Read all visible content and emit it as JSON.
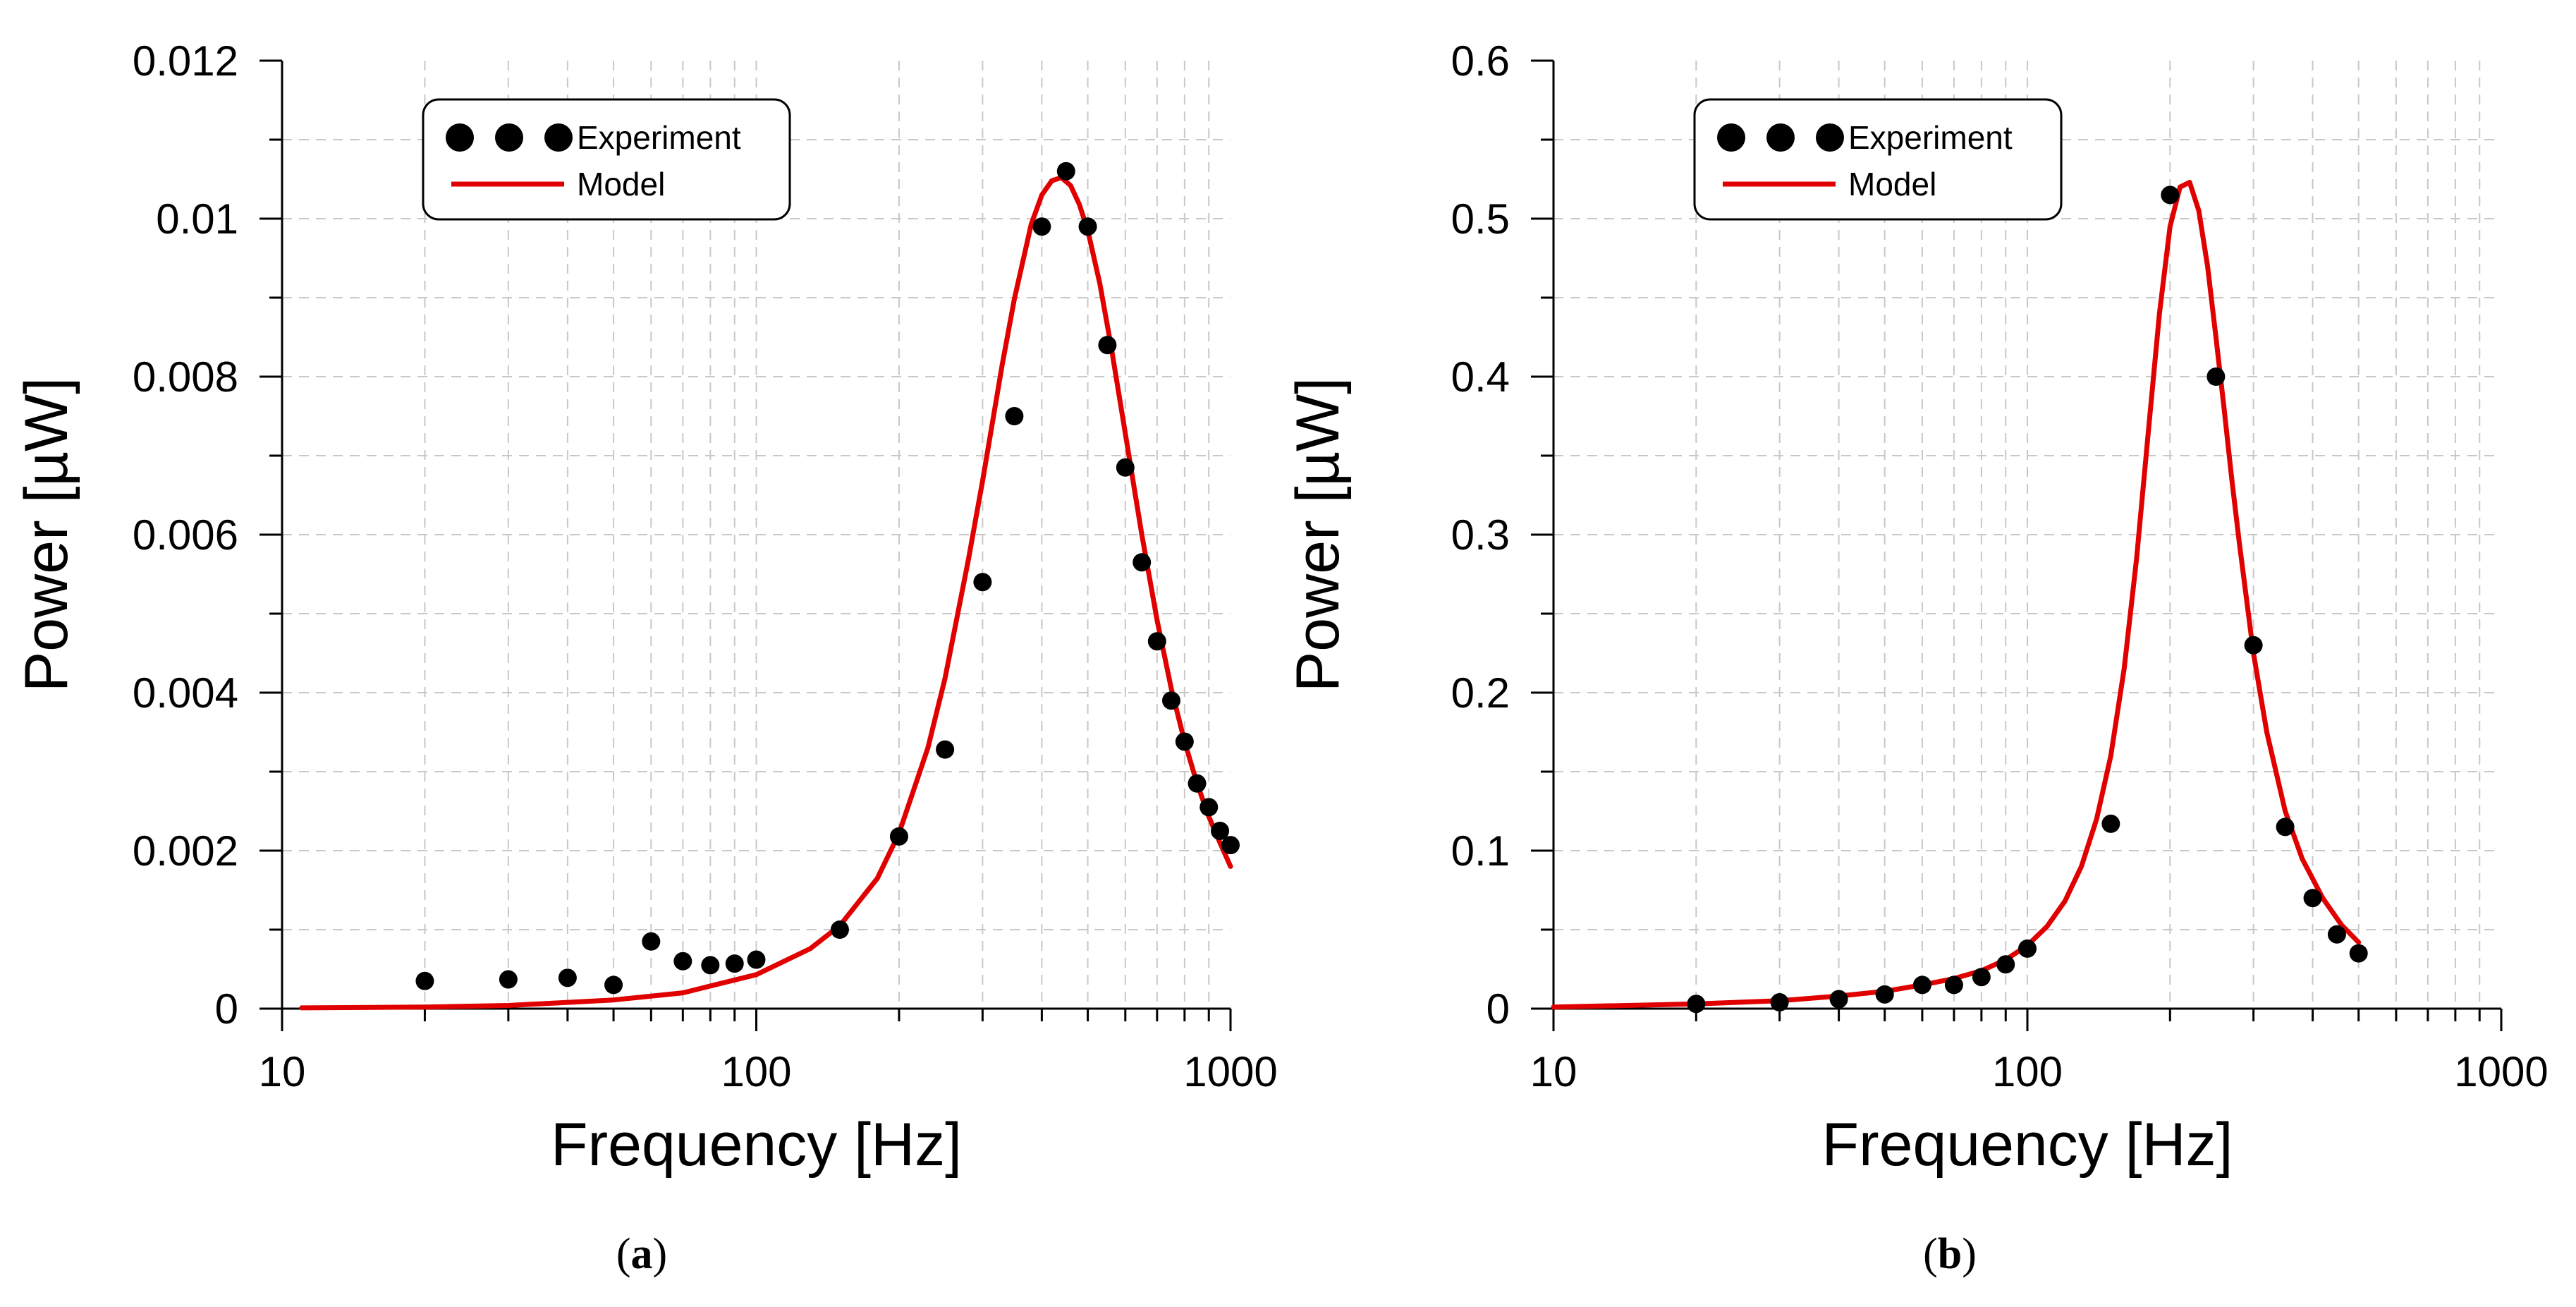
{
  "chart_data": [
    {
      "type": "line",
      "panel_label": "(a)",
      "panel_letter": "a",
      "title": "",
      "xlabel": "Frequency [Hz]",
      "ylabel": "Power [µW]",
      "xscale": "log",
      "xlim": [
        10,
        1000
      ],
      "ylim": [
        0,
        0.012
      ],
      "xticks": [
        10,
        100,
        1000
      ],
      "xtick_labels": [
        "10",
        "100",
        "1000"
      ],
      "yticks": [
        0,
        0.002,
        0.004,
        0.006,
        0.008,
        0.01,
        0.012
      ],
      "ytick_labels": [
        "0",
        "0.002",
        "0.004",
        "0.006",
        "0.008",
        "0.01",
        "0.012"
      ],
      "grid": true,
      "legend": {
        "placement": "top-left",
        "entries": [
          "Experiment",
          "Model"
        ]
      },
      "series": [
        {
          "name": "Experiment",
          "kind": "scatter",
          "color": "#000000",
          "x": [
            20,
            30,
            40,
            50,
            60,
            70,
            80,
            90,
            100,
            150,
            200,
            250,
            300,
            350,
            400,
            450,
            500,
            550,
            600,
            650,
            700,
            750,
            800,
            850,
            900,
            950,
            1000
          ],
          "y": [
            0.00035,
            0.00037,
            0.00039,
            0.0003,
            0.00085,
            0.0006,
            0.00055,
            0.00057,
            0.00062,
            0.001,
            0.00218,
            0.00328,
            0.0054,
            0.0075,
            0.0099,
            0.0106,
            0.0099,
            0.0084,
            0.00685,
            0.00565,
            0.00465,
            0.0039,
            0.00338,
            0.00285,
            0.00255,
            0.00225,
            0.00207
          ]
        },
        {
          "name": "Model",
          "kind": "line",
          "color": "#e00000",
          "x": [
            11,
            20,
            30,
            50,
            70,
            100,
            130,
            150,
            180,
            200,
            230,
            250,
            280,
            300,
            330,
            350,
            380,
            400,
            420,
            440,
            460,
            480,
            500,
            530,
            560,
            600,
            650,
            700,
            750,
            800,
            850,
            900,
            950,
            1000
          ],
          "y": [
            1e-05,
            2e-05,
            4e-05,
            0.00011,
            0.0002,
            0.00043,
            0.00076,
            0.00105,
            0.00165,
            0.00222,
            0.0033,
            0.00418,
            0.00568,
            0.00668,
            0.00815,
            0.00898,
            0.00993,
            0.0103,
            0.01048,
            0.01052,
            0.01042,
            0.01018,
            0.00985,
            0.00918,
            0.00838,
            0.00728,
            0.006,
            0.00492,
            0.00405,
            0.00338,
            0.00285,
            0.00243,
            0.0021,
            0.0018
          ]
        }
      ]
    },
    {
      "type": "line",
      "panel_label": "(b)",
      "panel_letter": "b",
      "title": "",
      "xlabel": "Frequency [Hz]",
      "ylabel": "Power [µW]",
      "xscale": "log",
      "xlim": [
        10,
        1000
      ],
      "ylim": [
        0,
        0.6
      ],
      "xticks": [
        10,
        100,
        1000
      ],
      "xtick_labels": [
        "10",
        "100",
        "1000"
      ],
      "yticks": [
        0,
        0.1,
        0.2,
        0.3,
        0.4,
        0.5,
        0.6
      ],
      "ytick_labels": [
        "0",
        "0.1",
        "0.2",
        "0.3",
        "0.4",
        "0.5",
        "0.6"
      ],
      "grid": true,
      "legend": {
        "placement": "top-left",
        "entries": [
          "Experiment",
          "Model"
        ]
      },
      "series": [
        {
          "name": "Experiment",
          "kind": "scatter",
          "color": "#000000",
          "x": [
            20,
            30,
            40,
            50,
            60,
            70,
            80,
            90,
            100,
            150,
            200,
            250,
            300,
            350,
            400,
            450,
            500
          ],
          "y": [
            0.003,
            0.004,
            0.006,
            0.009,
            0.015,
            0.015,
            0.02,
            0.028,
            0.038,
            0.117,
            0.515,
            0.4,
            0.23,
            0.115,
            0.07,
            0.047,
            0.035
          ]
        },
        {
          "name": "Model",
          "kind": "line",
          "color": "#e00000",
          "x": [
            10,
            20,
            30,
            40,
            50,
            60,
            70,
            80,
            90,
            100,
            110,
            120,
            130,
            140,
            150,
            160,
            170,
            180,
            190,
            200,
            210,
            220,
            230,
            240,
            250,
            260,
            270,
            280,
            300,
            320,
            350,
            380,
            420,
            460,
            500
          ],
          "y": [
            0.001,
            0.003,
            0.005,
            0.008,
            0.011,
            0.015,
            0.019,
            0.024,
            0.031,
            0.04,
            0.052,
            0.068,
            0.09,
            0.12,
            0.16,
            0.215,
            0.285,
            0.365,
            0.44,
            0.495,
            0.52,
            0.523,
            0.505,
            0.47,
            0.425,
            0.38,
            0.335,
            0.295,
            0.225,
            0.175,
            0.125,
            0.095,
            0.07,
            0.053,
            0.042
          ]
        }
      ]
    }
  ]
}
